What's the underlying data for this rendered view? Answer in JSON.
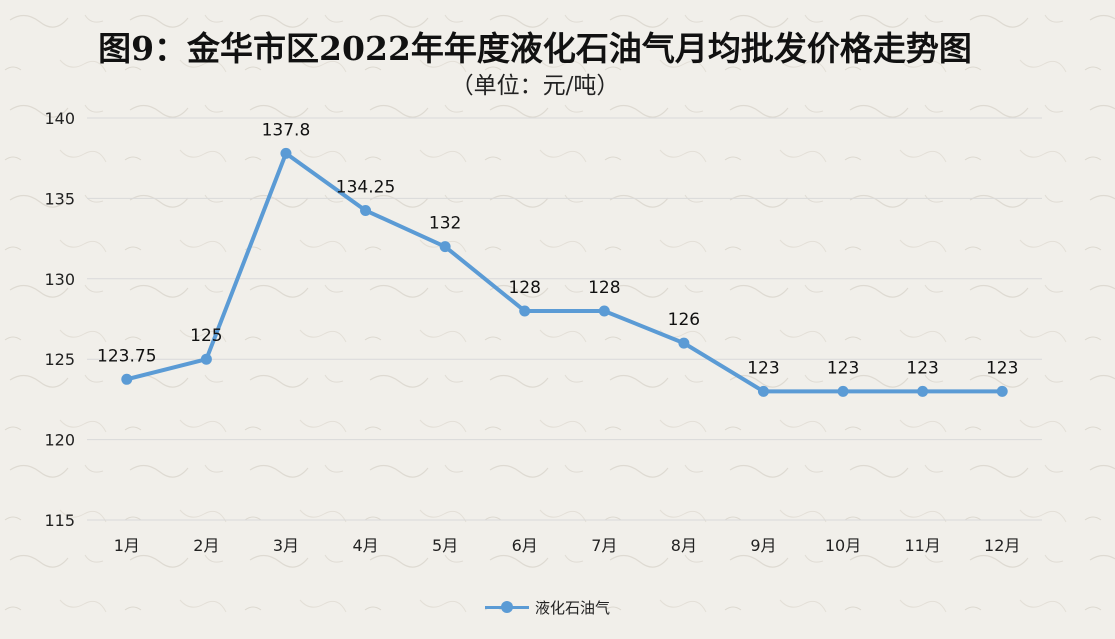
{
  "title": "图9：金华市区2022年年度液化石油气月均批发价格走势图",
  "subtitle": "（单位：元/吨）",
  "chart_data": {
    "type": "line",
    "categories": [
      "1月",
      "2月",
      "3月",
      "4月",
      "5月",
      "6月",
      "7月",
      "8月",
      "9月",
      "10月",
      "11月",
      "12月"
    ],
    "series": [
      {
        "name": "液化石油气",
        "values": [
          123.75,
          125,
          137.8,
          134.25,
          132,
          128,
          128,
          126,
          123,
          123,
          123,
          123
        ],
        "labels": [
          "123.75",
          "125",
          "137.8",
          "134.25",
          "132",
          "128",
          "128",
          "126",
          "123",
          "123",
          "123",
          "123"
        ]
      }
    ],
    "ylim": [
      115,
      140
    ],
    "yticks": [
      115,
      120,
      125,
      130,
      135,
      140
    ],
    "grid": true,
    "legend_position": "bottom"
  },
  "colors": {
    "series": "#5b9bd5",
    "grid": "#d9d9d9",
    "background": "#f1efea"
  }
}
